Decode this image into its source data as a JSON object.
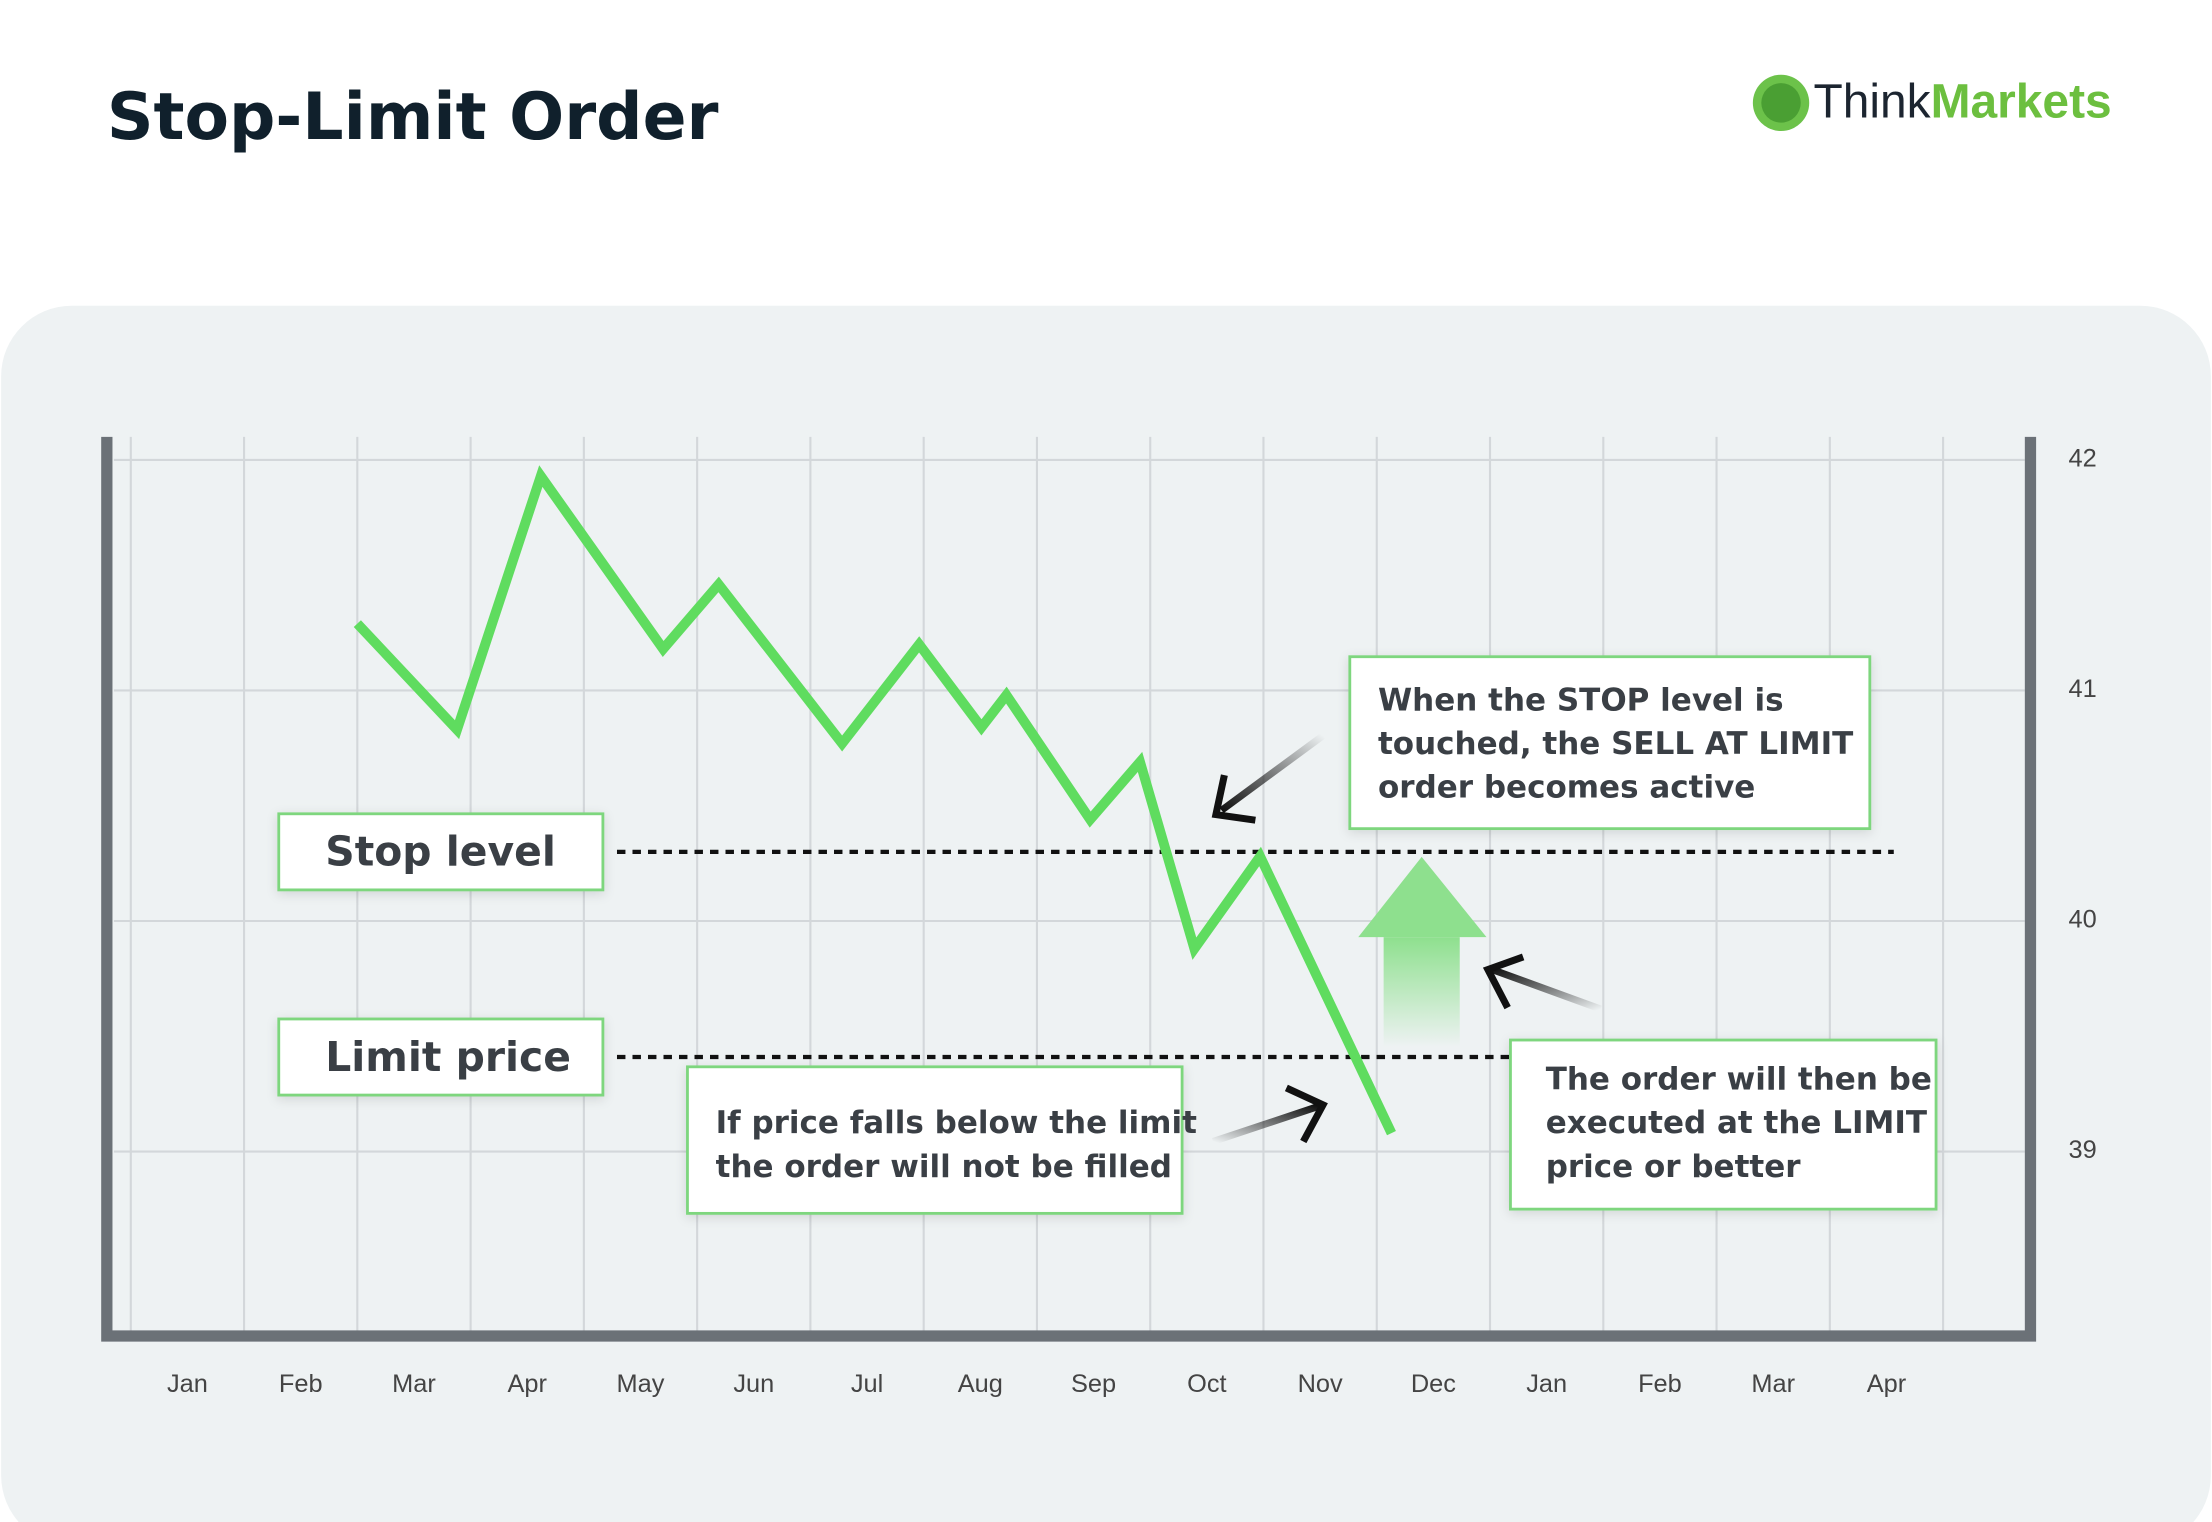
{
  "chart_data": {
    "type": "line",
    "title": "Stop-Limit Order",
    "logo": {
      "first": "Think",
      "second": "Markets"
    },
    "categories": [
      "Jan",
      "Feb",
      "Mar",
      "Apr",
      "May",
      "Jun",
      "Jul",
      "Aug",
      "Sep",
      "Oct",
      "Nov",
      "Dec",
      "Jan",
      "Feb",
      "Mar",
      "Apr"
    ],
    "series": [
      {
        "color": "#5fdc5f",
        "x": [
          1.5,
          2.38,
          3.12,
          4.2,
          4.69,
          5.78,
          6.46,
          7.01,
          7.23,
          7.97,
          8.41,
          8.89,
          9.47,
          10.63
        ],
        "values": [
          41.29,
          40.83,
          41.93,
          41.18,
          41.46,
          40.77,
          41.2,
          40.84,
          40.98,
          40.44,
          40.69,
          39.88,
          40.28,
          39.08
        ]
      }
    ],
    "ylim": [
      38.2,
      42.1
    ],
    "yticks": [
      39,
      40,
      41,
      42
    ],
    "grid": true,
    "levels": [
      {
        "label": "Stop level",
        "value": 40.3
      },
      {
        "label": "Limit price",
        "value": 39.41
      }
    ],
    "annotations": [
      [
        "When the STOP level is",
        "touched, the SELL AT LIMIT",
        "order becomes active"
      ],
      [
        "If price falls below the limit",
        "the order will not be filled"
      ],
      [
        "The order will then be",
        "executed at the LIMIT",
        "price or better"
      ]
    ]
  }
}
